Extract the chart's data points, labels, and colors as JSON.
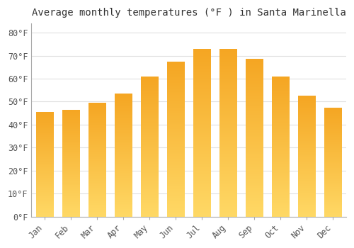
{
  "title": "Average monthly temperatures (°F ) in Santa Marinella",
  "months": [
    "Jan",
    "Feb",
    "Mar",
    "Apr",
    "May",
    "Jun",
    "Jul",
    "Aug",
    "Sep",
    "Oct",
    "Nov",
    "Dec"
  ],
  "values": [
    45.5,
    46.5,
    49.5,
    53.5,
    61.0,
    67.5,
    73.0,
    73.0,
    68.5,
    61.0,
    52.5,
    47.5
  ],
  "bar_color_top": "#F5A623",
  "bar_color_bottom": "#FFD966",
  "background_color": "#ffffff",
  "grid_color": "#e0e0e0",
  "title_fontsize": 10,
  "tick_fontsize": 8.5,
  "yticks": [
    0,
    10,
    20,
    30,
    40,
    50,
    60,
    70,
    80
  ],
  "ylim": [
    0,
    84
  ],
  "ylabel_format": "°F"
}
